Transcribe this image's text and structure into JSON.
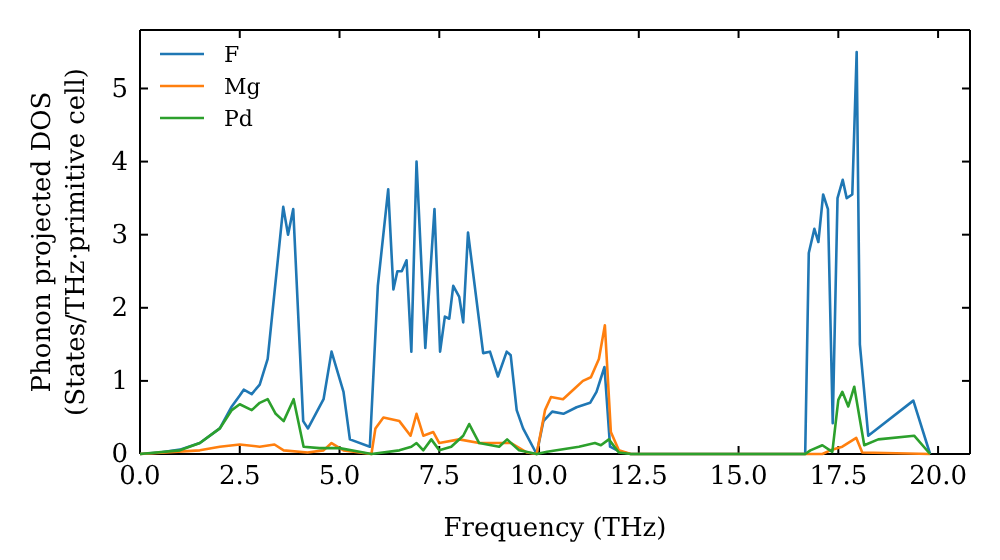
{
  "chart_data": {
    "type": "line",
    "xlabel": "Frequency (THz)",
    "ylabel": "Phonon projected DOS\n(States/THz·primitive cell)",
    "xlim": [
      0,
      20.8
    ],
    "ylim": [
      0,
      5.8
    ],
    "xticks": [
      {
        "value": 0,
        "label": "0.0"
      },
      {
        "value": 2.5,
        "label": "2.5"
      },
      {
        "value": 5,
        "label": "5.0"
      },
      {
        "value": 7.5,
        "label": "7.5"
      },
      {
        "value": 10,
        "label": "10.0"
      },
      {
        "value": 12.5,
        "label": "12.5"
      },
      {
        "value": 15,
        "label": "15.0"
      },
      {
        "value": 17.5,
        "label": "17.5"
      },
      {
        "value": 20,
        "label": "20.0"
      }
    ],
    "yticks": [
      0,
      1,
      2,
      3,
      4,
      5
    ],
    "grid": false,
    "legend": "top left",
    "marker": "none",
    "line_style": "solid",
    "series": [
      {
        "name": "F",
        "color": "#1f77b4",
        "x": [
          0,
          0.5,
          1,
          1.5,
          2,
          2.3,
          2.5,
          2.6,
          2.8,
          3,
          3.2,
          3.59,
          3.71,
          3.84,
          4.09,
          4.21,
          4.6,
          4.8,
          5.1,
          5.26,
          5.76,
          5.96,
          6.22,
          6.35,
          6.45,
          6.56,
          6.68,
          6.8,
          6.93,
          7.15,
          7.38,
          7.52,
          7.64,
          7.75,
          7.85,
          8,
          8.1,
          8.22,
          8.6,
          8.77,
          8.97,
          9.19,
          9.29,
          9.44,
          9.6,
          9.94,
          10.11,
          10.33,
          10.61,
          10.94,
          11.28,
          11.44,
          11.64,
          11.78,
          12.03,
          12.3,
          16.67,
          16.76,
          16.9,
          17,
          17.12,
          17.24,
          17.36,
          17.48,
          17.61,
          17.71,
          17.85,
          17.96,
          18.04,
          18.25,
          19.38,
          19.8
        ],
        "values": [
          0,
          0.02,
          0.06,
          0.15,
          0.35,
          0.65,
          0.8,
          0.88,
          0.82,
          0.95,
          1.3,
          3.38,
          3.0,
          3.35,
          0.45,
          0.35,
          0.75,
          1.4,
          0.85,
          0.2,
          0.1,
          2.3,
          3.62,
          2.25,
          2.5,
          2.5,
          2.65,
          1.4,
          4.0,
          1.45,
          3.35,
          1.4,
          1.88,
          1.85,
          2.3,
          2.15,
          1.8,
          3.03,
          1.38,
          1.4,
          1.06,
          1.4,
          1.35,
          0.6,
          0.35,
          0,
          0.45,
          0.58,
          0.55,
          0.64,
          0.7,
          0.85,
          1.19,
          0.1,
          0.03,
          0,
          0,
          2.75,
          3.08,
          2.9,
          3.55,
          3.35,
          0.42,
          3.5,
          3.75,
          3.5,
          3.55,
          5.5,
          1.5,
          0.25,
          0.73,
          0
        ]
      },
      {
        "name": "Mg",
        "color": "#ff7f0e",
        "x": [
          0,
          1.5,
          2,
          2.5,
          3,
          3.37,
          3.6,
          4.2,
          4.6,
          4.8,
          5.1,
          5.5,
          5.8,
          5.9,
          6.1,
          6.5,
          6.78,
          6.93,
          7.1,
          7.35,
          7.5,
          8,
          8.5,
          9,
          9.3,
          9.7,
          9.94,
          10.15,
          10.3,
          10.6,
          10.9,
          11.1,
          11.3,
          11.5,
          11.65,
          11.8,
          12,
          12.3,
          17.1,
          17.3,
          17.6,
          17.95,
          18.1,
          19.8
        ],
        "values": [
          0,
          0.05,
          0.1,
          0.13,
          0.1,
          0.13,
          0.05,
          0.02,
          0.05,
          0.15,
          0.05,
          0.02,
          0,
          0.35,
          0.5,
          0.45,
          0.25,
          0.55,
          0.25,
          0.3,
          0.15,
          0.2,
          0.15,
          0.15,
          0.15,
          0.02,
          0,
          0.6,
          0.78,
          0.75,
          0.9,
          1.0,
          1.05,
          1.3,
          1.76,
          0.3,
          0.05,
          0,
          0,
          0.05,
          0.1,
          0.22,
          0.02,
          0
        ]
      },
      {
        "name": "Pd",
        "color": "#2ca02c",
        "x": [
          0,
          1,
          1.5,
          2,
          2.3,
          2.5,
          2.8,
          3,
          3.2,
          3.4,
          3.6,
          3.85,
          4.1,
          4.5,
          5,
          5.5,
          5.8,
          6.5,
          6.8,
          6.93,
          7.1,
          7.3,
          7.5,
          7.8,
          8.1,
          8.25,
          8.5,
          9,
          9.2,
          9.5,
          9.94,
          10.2,
          11,
          11.4,
          11.55,
          11.75,
          12,
          12.3,
          16.67,
          16.8,
          17.1,
          17.35,
          17.5,
          17.6,
          17.75,
          17.9,
          18.15,
          18.5,
          19.4,
          19.8
        ],
        "values": [
          0,
          0.05,
          0.15,
          0.35,
          0.6,
          0.68,
          0.6,
          0.7,
          0.75,
          0.55,
          0.45,
          0.75,
          0.1,
          0.08,
          0.08,
          0.03,
          0,
          0.05,
          0.1,
          0.15,
          0.05,
          0.2,
          0.05,
          0.1,
          0.25,
          0.41,
          0.15,
          0.1,
          0.2,
          0.05,
          0,
          0.03,
          0.1,
          0.15,
          0.12,
          0.2,
          0.02,
          0,
          0,
          0.05,
          0.12,
          0.03,
          0.74,
          0.85,
          0.65,
          0.92,
          0.12,
          0.2,
          0.25,
          0
        ]
      }
    ]
  }
}
